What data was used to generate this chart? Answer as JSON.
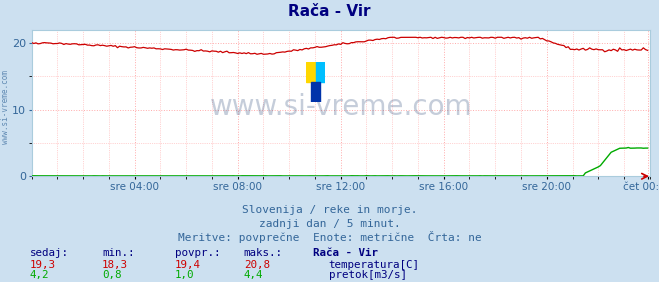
{
  "title": "Rača - Vir",
  "title_color": "#000080",
  "bg_color": "#cce0f0",
  "plot_bg_color": "#ffffff",
  "grid_color": "#ffaaaa",
  "grid_linestyle": ":",
  "tick_label_color": "#336699",
  "x_tick_labels": [
    "sre 04:00",
    "sre 08:00",
    "sre 12:00",
    "sre 16:00",
    "sre 20:00",
    "čet 00:00"
  ],
  "x_tick_positions": [
    48,
    96,
    144,
    192,
    240,
    287
  ],
  "y_ticks": [
    0,
    10,
    20
  ],
  "ylim": [
    0,
    22
  ],
  "xlim": [
    0,
    288
  ],
  "temp_color": "#cc0000",
  "flow_color": "#00aa00",
  "watermark": "www.si-vreme.com",
  "watermark_color": "#1a3a6e",
  "watermark_alpha": 0.25,
  "watermark_fontsize": 20,
  "subtitle1": "Slovenija / reke in morje.",
  "subtitle2": "zadnji dan / 5 minut.",
  "subtitle3": "Meritve: povprečne  Enote: metrične  Črta: ne",
  "subtitle_color": "#336699",
  "subtitle_fontsize": 8,
  "table_header": [
    "sedaj:",
    "min.:",
    "povpr.:",
    "maks.:",
    "Rača - Vir"
  ],
  "table_temp": [
    "19,3",
    "18,3",
    "19,4",
    "20,8"
  ],
  "table_flow": [
    "4,2",
    "0,8",
    "1,0",
    "4,4"
  ],
  "table_label_temp": "temperatura[C]",
  "table_label_flow": "pretok[m3/s]",
  "table_color": "#000080",
  "table_value_color_temp": "#cc0000",
  "table_value_color_flow": "#00aa00",
  "n_points": 288,
  "logo_colors": [
    "#FFD700",
    "#00BFFF",
    "#0033AA"
  ]
}
